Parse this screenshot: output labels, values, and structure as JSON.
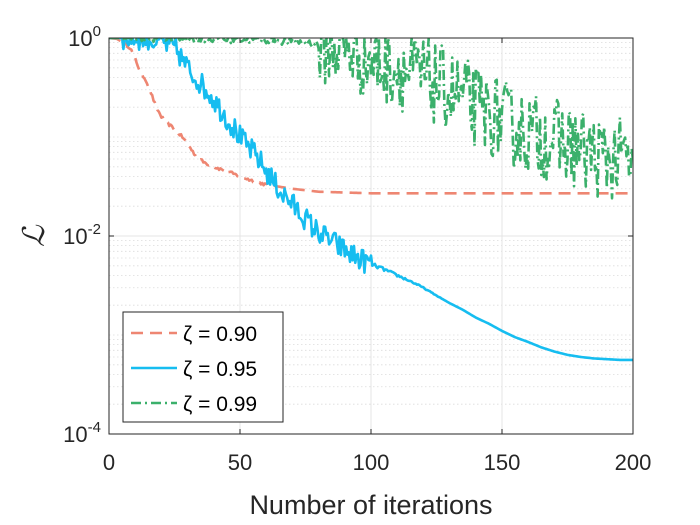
{
  "chart_data": {
    "type": "line",
    "title": "",
    "xlabel": "Number of iterations",
    "ylabel": "ℒ",
    "xlim": [
      0,
      200
    ],
    "ylim": [
      0.0001,
      1
    ],
    "yscale": "log",
    "x_ticks": [
      0,
      50,
      100,
      150,
      200
    ],
    "x_tick_labels": [
      "0",
      "50",
      "100",
      "150",
      "200"
    ],
    "y_ticks": [
      0.0001,
      0.01,
      1
    ],
    "y_tick_labels": [
      {
        "base": "10",
        "exp": "-4"
      },
      {
        "base": "10",
        "exp": "-2"
      },
      {
        "base": "10",
        "exp": "0"
      }
    ],
    "grid": true,
    "minor_grid": true,
    "legend_position": "bottom-left",
    "series": [
      {
        "name": "ζ = 0.90",
        "color": "#ee8672",
        "style": "dashed",
        "points": [
          [
            0,
            1.0
          ],
          [
            3,
            0.98
          ],
          [
            6,
            0.88
          ],
          [
            8,
            0.8
          ],
          [
            10,
            0.62
          ],
          [
            12,
            0.45
          ],
          [
            14,
            0.38
          ],
          [
            16,
            0.28
          ],
          [
            18,
            0.2
          ],
          [
            20,
            0.16
          ],
          [
            22,
            0.14
          ],
          [
            25,
            0.12
          ],
          [
            28,
            0.1
          ],
          [
            30,
            0.085
          ],
          [
            33,
            0.065
          ],
          [
            36,
            0.056
          ],
          [
            40,
            0.05
          ],
          [
            45,
            0.045
          ],
          [
            50,
            0.04
          ],
          [
            55,
            0.036
          ],
          [
            60,
            0.033
          ],
          [
            70,
            0.03
          ],
          [
            80,
            0.028
          ],
          [
            90,
            0.0275
          ],
          [
            100,
            0.027
          ],
          [
            120,
            0.027
          ],
          [
            150,
            0.027
          ],
          [
            180,
            0.027
          ],
          [
            200,
            0.027
          ]
        ]
      },
      {
        "name": "ζ = 0.95",
        "color": "#16bdf0",
        "style": "solid",
        "points": [
          [
            0,
            1.0
          ],
          [
            10,
            1.0
          ],
          [
            15,
            0.99
          ],
          [
            18,
            0.9
          ],
          [
            20,
            0.95
          ],
          [
            22,
            0.85
          ],
          [
            24,
            0.82
          ],
          [
            26,
            0.75
          ],
          [
            28,
            0.6
          ],
          [
            30,
            0.5
          ],
          [
            32,
            0.42
          ],
          [
            34,
            0.38
          ],
          [
            36,
            0.32
          ],
          [
            38,
            0.28
          ],
          [
            40,
            0.24
          ],
          [
            42,
            0.2
          ],
          [
            44,
            0.17
          ],
          [
            46,
            0.14
          ],
          [
            48,
            0.12
          ],
          [
            50,
            0.1
          ],
          [
            52,
            0.085
          ],
          [
            54,
            0.075
          ],
          [
            56,
            0.065
          ],
          [
            58,
            0.055
          ],
          [
            60,
            0.045
          ],
          [
            62,
            0.038
          ],
          [
            64,
            0.032
          ],
          [
            66,
            0.027
          ],
          [
            68,
            0.024
          ],
          [
            70,
            0.021
          ],
          [
            72,
            0.018
          ],
          [
            74,
            0.016
          ],
          [
            76,
            0.014
          ],
          [
            78,
            0.012
          ],
          [
            80,
            0.011
          ],
          [
            82,
            0.01
          ],
          [
            84,
            0.0092
          ],
          [
            86,
            0.0085
          ],
          [
            88,
            0.0078
          ],
          [
            90,
            0.0072
          ],
          [
            92,
            0.0066
          ],
          [
            94,
            0.0062
          ],
          [
            96,
            0.0058
          ],
          [
            98,
            0.0055
          ],
          [
            100,
            0.0052
          ],
          [
            105,
            0.0046
          ],
          [
            110,
            0.004
          ],
          [
            115,
            0.0035
          ],
          [
            120,
            0.003
          ],
          [
            125,
            0.0025
          ],
          [
            130,
            0.0021
          ],
          [
            135,
            0.0018
          ],
          [
            140,
            0.0015
          ],
          [
            145,
            0.0013
          ],
          [
            150,
            0.0011
          ],
          [
            155,
            0.00095
          ],
          [
            160,
            0.00085
          ],
          [
            165,
            0.00075
          ],
          [
            170,
            0.00068
          ],
          [
            175,
            0.00063
          ],
          [
            180,
            0.0006
          ],
          [
            185,
            0.00058
          ],
          [
            190,
            0.00057
          ],
          [
            195,
            0.00056
          ],
          [
            200,
            0.00056
          ]
        ]
      },
      {
        "name": "ζ = 0.99",
        "color": "#3bb06b",
        "style": "dashdot",
        "points": [
          [
            0,
            1.0
          ],
          [
            20,
            1.0
          ],
          [
            40,
            0.98
          ],
          [
            60,
            0.96
          ],
          [
            70,
            0.92
          ],
          [
            80,
            0.88
          ],
          [
            85,
            0.85
          ],
          [
            90,
            0.8
          ],
          [
            95,
            0.7
          ],
          [
            100,
            0.6
          ],
          [
            105,
            0.55
          ],
          [
            110,
            0.5
          ],
          [
            115,
            0.44
          ],
          [
            120,
            0.4
          ],
          [
            125,
            0.34
          ],
          [
            130,
            0.3
          ],
          [
            135,
            0.25
          ],
          [
            140,
            0.2
          ],
          [
            145,
            0.17
          ],
          [
            150,
            0.15
          ],
          [
            155,
            0.12
          ],
          [
            160,
            0.11
          ],
          [
            165,
            0.1
          ],
          [
            170,
            0.095
          ],
          [
            175,
            0.085
          ],
          [
            180,
            0.075
          ],
          [
            185,
            0.065
          ],
          [
            190,
            0.06
          ],
          [
            195,
            0.06
          ],
          [
            200,
            0.055
          ]
        ]
      }
    ]
  }
}
